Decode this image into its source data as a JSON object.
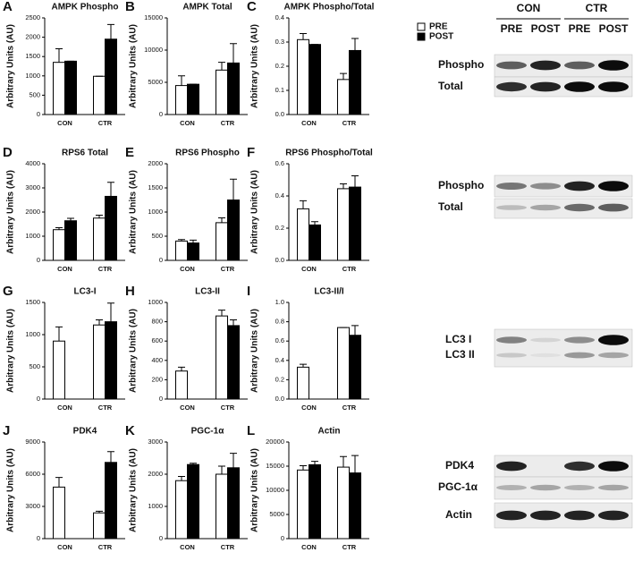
{
  "chart_data": [
    {
      "type": "bar",
      "panel": "A",
      "title": "AMPK Phospho",
      "y_label": "Arbitrary Units (AU)",
      "categories": [
        "CON",
        "CTR"
      ],
      "ylim": [
        0,
        2500
      ],
      "yticks": [
        0,
        500,
        1000,
        1500,
        2000,
        2500
      ],
      "series": [
        {
          "color": "#ffffff",
          "values": [
            1350,
            990
          ],
          "errors": [
            350,
            0
          ]
        },
        {
          "color": "#000000",
          "values": [
            1380,
            1950
          ],
          "errors": [
            0,
            380
          ]
        }
      ]
    },
    {
      "type": "bar",
      "panel": "B",
      "title": "AMPK Total",
      "y_label": "Arbitrary Units (AU)",
      "categories": [
        "CON",
        "CTR"
      ],
      "ylim": [
        0,
        15000
      ],
      "yticks": [
        0,
        5000,
        10000,
        15000
      ],
      "series": [
        {
          "color": "#ffffff",
          "values": [
            4500,
            6900
          ],
          "errors": [
            1500,
            1200
          ]
        },
        {
          "color": "#000000",
          "values": [
            4700,
            8000
          ],
          "errors": [
            0,
            3000
          ]
        }
      ]
    },
    {
      "type": "bar",
      "panel": "C",
      "title": "AMPK Phospho/Total",
      "y_label": "Arbitrary Units (AU)",
      "categories": [
        "CON",
        "CTR"
      ],
      "ylim": [
        0,
        0.4
      ],
      "yticks": [
        {
          "value": 0,
          "label": "0.0"
        },
        0.1,
        0.2,
        0.3,
        0.4
      ],
      "series": [
        {
          "name": "PRE",
          "color": "#ffffff",
          "values": [
            0.31,
            0.145
          ],
          "errors": [
            0.025,
            0.025
          ]
        },
        {
          "name": "POST",
          "color": "#000000",
          "values": [
            0.29,
            0.265
          ],
          "errors": [
            0,
            0.05
          ]
        }
      ]
    },
    {
      "type": "bar",
      "panel": "D",
      "title": "RPS6 Total",
      "y_label": "Arbitrary Units (AU)",
      "categories": [
        "CON",
        "CTR"
      ],
      "ylim": [
        0,
        4000
      ],
      "yticks": [
        0,
        1000,
        2000,
        3000,
        4000
      ],
      "series": [
        {
          "color": "#ffffff",
          "values": [
            1270,
            1750
          ],
          "errors": [
            80,
            120
          ]
        },
        {
          "color": "#000000",
          "values": [
            1640,
            2650
          ],
          "errors": [
            100,
            580
          ]
        }
      ]
    },
    {
      "type": "bar",
      "panel": "E",
      "title": "RPS6 Phospho",
      "y_label": "Arbitrary Units (AU)",
      "categories": [
        "CON",
        "CTR"
      ],
      "ylim": [
        0,
        2000
      ],
      "yticks": [
        0,
        500,
        1000,
        1500,
        2000
      ],
      "series": [
        {
          "color": "#ffffff",
          "values": [
            400,
            780
          ],
          "errors": [
            30,
            100
          ]
        },
        {
          "color": "#000000",
          "values": [
            360,
            1250
          ],
          "errors": [
            60,
            430
          ]
        }
      ]
    },
    {
      "type": "bar",
      "panel": "F",
      "title": "RPS6 Phospho/Total",
      "y_label": "Arbitrary Units (AU)",
      "categories": [
        "CON",
        "CTR"
      ],
      "ylim": [
        0,
        0.6
      ],
      "yticks": [
        {
          "value": 0,
          "label": "0.0"
        },
        0.2,
        0.4,
        0.6
      ],
      "series": [
        {
          "color": "#ffffff",
          "values": [
            0.32,
            0.445
          ],
          "errors": [
            0.05,
            0.03
          ]
        },
        {
          "color": "#000000",
          "values": [
            0.22,
            0.455
          ],
          "errors": [
            0.02,
            0.07
          ]
        }
      ]
    },
    {
      "type": "bar",
      "panel": "G",
      "title": "LC3-I",
      "y_label": "Arbitrary Units (AU)",
      "categories": [
        "CON",
        "CTR"
      ],
      "ylim": [
        0,
        1500
      ],
      "yticks": [
        0,
        500,
        1000,
        1500
      ],
      "series": [
        {
          "color": "#ffffff",
          "values": [
            900,
            1150
          ],
          "errors": [
            220,
            80
          ]
        },
        {
          "color": "#000000",
          "values": [
            null,
            1200
          ],
          "errors": [
            null,
            290
          ]
        }
      ]
    },
    {
      "type": "bar",
      "panel": "H",
      "title": "LC3-II",
      "y_label": "Arbitrary Units (AU)",
      "categories": [
        "CON",
        "CTR"
      ],
      "ylim": [
        0,
        1000
      ],
      "yticks": [
        0,
        200,
        400,
        600,
        800,
        1000
      ],
      "series": [
        {
          "color": "#ffffff",
          "values": [
            290,
            860
          ],
          "errors": [
            40,
            60
          ]
        },
        {
          "color": "#000000",
          "values": [
            null,
            760
          ],
          "errors": [
            null,
            60
          ]
        }
      ]
    },
    {
      "type": "bar",
      "panel": "I",
      "title": "LC3-II/I",
      "y_label": "Arbitrary Units (AU)",
      "categories": [
        "CON",
        "CTR"
      ],
      "ylim": [
        0,
        1.0
      ],
      "yticks": [
        {
          "value": 0,
          "label": "0.0"
        },
        0.2,
        0.4,
        0.6,
        0.8,
        {
          "value": 1,
          "label": "1.0"
        }
      ],
      "series": [
        {
          "color": "#ffffff",
          "values": [
            0.33,
            0.74
          ],
          "errors": [
            0.03,
            0
          ]
        },
        {
          "color": "#000000",
          "values": [
            null,
            0.66
          ],
          "errors": [
            null,
            0.1
          ]
        }
      ]
    },
    {
      "type": "bar",
      "panel": "J",
      "title": "PDK4",
      "y_label": "Arbitrary Units (AU)",
      "categories": [
        "CON",
        "CTR"
      ],
      "ylim": [
        0,
        9000
      ],
      "yticks": [
        0,
        3000,
        6000,
        9000
      ],
      "series": [
        {
          "color": "#ffffff",
          "values": [
            4800,
            2400
          ],
          "errors": [
            900,
            150
          ]
        },
        {
          "color": "#000000",
          "values": [
            null,
            7100
          ],
          "errors": [
            null,
            1000
          ]
        }
      ]
    },
    {
      "type": "bar",
      "panel": "K",
      "title": "PGC-1α",
      "y_label": "Arbitrary Units (AU)",
      "categories": [
        "CON",
        "CTR"
      ],
      "ylim": [
        0,
        3000
      ],
      "yticks": [
        0,
        1000,
        2000,
        3000
      ],
      "series": [
        {
          "color": "#ffffff",
          "values": [
            1800,
            2000
          ],
          "errors": [
            130,
            250
          ]
        },
        {
          "color": "#000000",
          "values": [
            2300,
            2200
          ],
          "errors": [
            40,
            450
          ]
        }
      ]
    },
    {
      "type": "bar",
      "panel": "L",
      "title": "Actin",
      "y_label": "Arbitrary Units (AU)",
      "categories": [
        "CON",
        "CTR"
      ],
      "ylim": [
        0,
        20000
      ],
      "yticks": [
        0,
        5000,
        10000,
        15000,
        20000
      ],
      "series": [
        {
          "color": "#ffffff",
          "values": [
            14200,
            14800
          ],
          "errors": [
            900,
            2200
          ]
        },
        {
          "color": "#000000",
          "values": [
            15300,
            13600
          ],
          "errors": [
            700,
            3600
          ]
        }
      ]
    }
  ],
  "blots": {
    "groups": [
      "CON",
      "CTR"
    ],
    "timepoints": [
      "PRE",
      "POST",
      "PRE",
      "POST"
    ],
    "rows": [
      "Phospho",
      "Total",
      "Phospho",
      "Total",
      "LC3 I",
      "LC3 II",
      "PDK4",
      "PGC-1α",
      "Actin"
    ]
  }
}
